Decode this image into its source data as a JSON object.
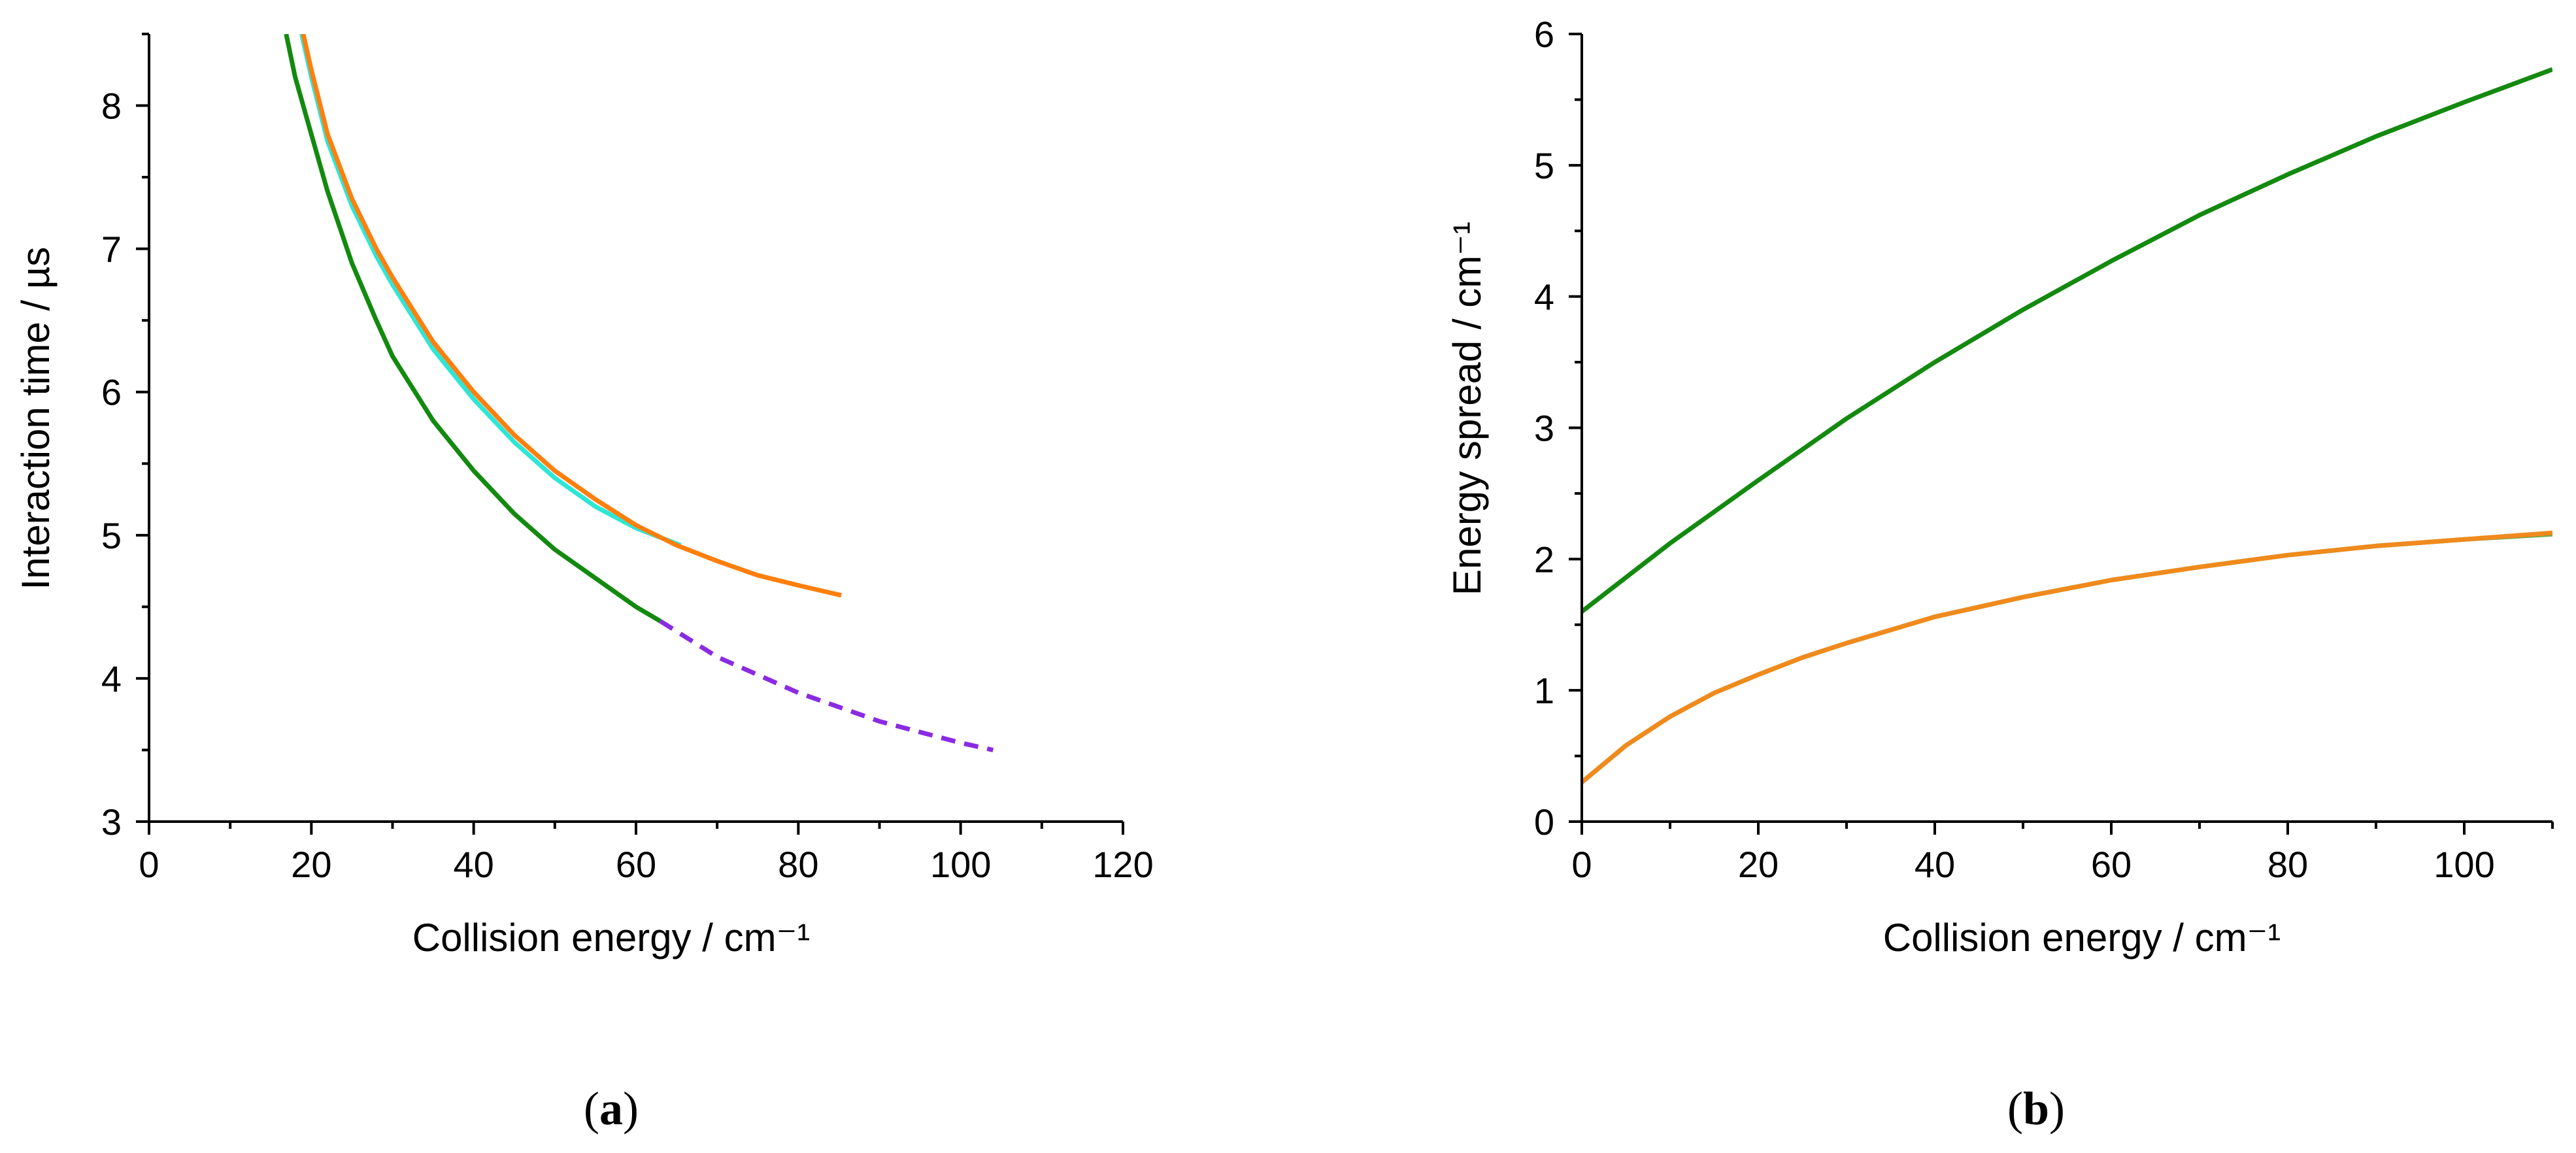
{
  "figure": {
    "panel_a_label": {
      "open": "(",
      "letter": "a",
      "close": ")"
    },
    "panel_b_label": {
      "open": "(",
      "letter": "b",
      "close": ")"
    }
  },
  "chart_data": [
    {
      "id": "a",
      "type": "line",
      "xlabel": "Collision energy / cm⁻¹",
      "ylabel": "Interaction time / µs",
      "xlim": [
        0,
        120
      ],
      "ylim": [
        3,
        8.5
      ],
      "xticks": [
        0,
        20,
        40,
        60,
        80,
        100,
        120
      ],
      "xtick_labels": [
        "0",
        "20",
        "40",
        "60",
        "80",
        "100",
        "120"
      ],
      "yticks": [
        3,
        4,
        5,
        6,
        7,
        8
      ],
      "ytick_labels": [
        "3",
        "4",
        "5",
        "6",
        "7",
        "8"
      ],
      "grid": false,
      "series": [
        {
          "name": "green",
          "color": "#138a0f",
          "dash": "none",
          "x": [
            16.9,
            18,
            20,
            22,
            25,
            28,
            30,
            35,
            40,
            45,
            50,
            55,
            60,
            63
          ],
          "y": [
            8.5,
            8.2,
            7.8,
            7.4,
            6.9,
            6.5,
            6.25,
            5.8,
            5.45,
            5.15,
            4.9,
            4.7,
            4.5,
            4.4
          ]
        },
        {
          "name": "purple-dashed",
          "color": "#8a2be2",
          "dash": "22,14",
          "x": [
            63,
            70,
            80,
            90,
            100,
            104
          ],
          "y": [
            4.4,
            4.15,
            3.9,
            3.7,
            3.55,
            3.5
          ]
        },
        {
          "name": "cyan",
          "color": "#2ee6d6",
          "dash": "none",
          "x": [
            18.8,
            20,
            22,
            25,
            28,
            30,
            35,
            40,
            45,
            50,
            55,
            60,
            65.5
          ],
          "y": [
            8.5,
            8.2,
            7.75,
            7.3,
            6.95,
            6.75,
            6.3,
            5.95,
            5.65,
            5.4,
            5.2,
            5.05,
            4.93
          ]
        },
        {
          "name": "orange",
          "color": "#ff7f0e",
          "dash": "none",
          "x": [
            19.0,
            20,
            22,
            25,
            28,
            30,
            35,
            40,
            45,
            50,
            55,
            60,
            65,
            70,
            75,
            80,
            85.3
          ],
          "y": [
            8.5,
            8.25,
            7.8,
            7.35,
            7.0,
            6.8,
            6.35,
            6.0,
            5.7,
            5.45,
            5.25,
            5.07,
            4.93,
            4.82,
            4.72,
            4.65,
            4.58
          ]
        }
      ]
    },
    {
      "id": "b",
      "type": "line",
      "xlabel": "Collision energy / cm⁻¹",
      "ylabel": "Energy spread / cm⁻¹",
      "xlim": [
        0,
        110
      ],
      "ylim": [
        0,
        6
      ],
      "xticks": [
        0,
        20,
        40,
        60,
        80,
        100
      ],
      "xtick_labels": [
        "0",
        "20",
        "40",
        "60",
        "80",
        "100"
      ],
      "yticks": [
        0,
        1,
        2,
        3,
        4,
        5,
        6
      ],
      "ytick_labels": [
        "0",
        "1",
        "2",
        "3",
        "4",
        "5",
        "6"
      ],
      "grid": false,
      "series": [
        {
          "name": "green",
          "color": "#138a0f",
          "dash": "none",
          "x": [
            0,
            10,
            20,
            30,
            40,
            50,
            60,
            70,
            80,
            90,
            100,
            110
          ],
          "y": [
            1.6,
            2.12,
            2.6,
            3.07,
            3.5,
            3.9,
            4.27,
            4.62,
            4.93,
            5.22,
            5.48,
            5.73
          ]
        },
        {
          "name": "green-under",
          "color": "#6aa84f",
          "dash": "none",
          "x": [
            0,
            5,
            10,
            15,
            20,
            25,
            30,
            40,
            50,
            60,
            70,
            80,
            90,
            100,
            110
          ],
          "y": [
            0.3,
            0.58,
            0.8,
            0.98,
            1.12,
            1.25,
            1.36,
            1.56,
            1.71,
            1.84,
            1.94,
            2.03,
            2.1,
            2.15,
            2.19
          ]
        },
        {
          "name": "orange",
          "color": "#f08a1c",
          "dash": "none",
          "x": [
            0,
            5,
            10,
            15,
            20,
            25,
            30,
            40,
            50,
            60,
            70,
            80,
            90,
            100,
            110
          ],
          "y": [
            0.3,
            0.58,
            0.8,
            0.98,
            1.12,
            1.25,
            1.36,
            1.56,
            1.71,
            1.84,
            1.94,
            2.03,
            2.1,
            2.15,
            2.2
          ]
        }
      ]
    }
  ]
}
